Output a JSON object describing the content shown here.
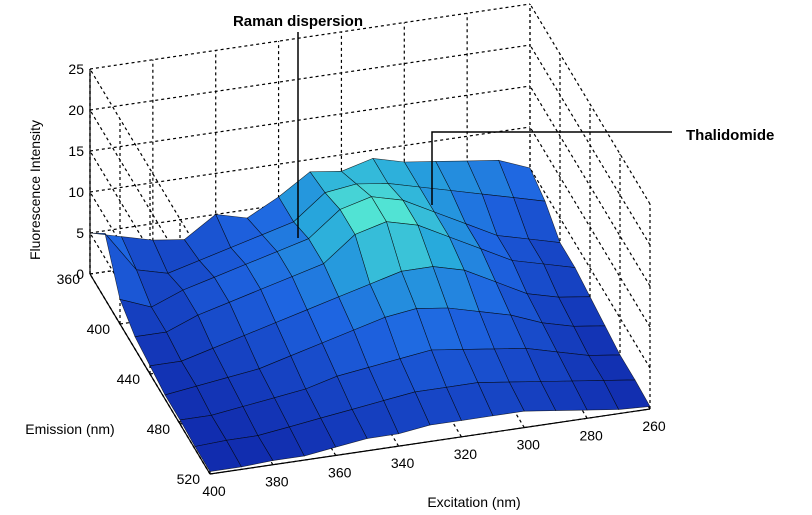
{
  "chart_data": {
    "type": "surface",
    "zlabel": "Fluorescence Intensity",
    "ylabel": "Emission (nm)",
    "xlabel": "Excitation (nm)",
    "z_ticks": [
      "0",
      "5",
      "10",
      "15",
      "20",
      "25"
    ],
    "y_ticks": [
      "360",
      "400",
      "440",
      "480",
      "520"
    ],
    "x_ticks": [
      "400",
      "380",
      "360",
      "340",
      "320",
      "300",
      "280",
      "260"
    ],
    "zlim": [
      0,
      25
    ],
    "ylim": [
      360,
      520
    ],
    "xlim": [
      260,
      400
    ],
    "grid": true,
    "annotations": [
      {
        "text": "Raman dispersion"
      },
      {
        "text": "Thalidomide"
      }
    ],
    "excitation": [
      400,
      390,
      380,
      370,
      360,
      350,
      340,
      330,
      320,
      310,
      300,
      290,
      280,
      270,
      260
    ],
    "emission": [
      360,
      380,
      400,
      420,
      440,
      460,
      480,
      500,
      520
    ],
    "intensity": [
      [
        5,
        4,
        3,
        2.5,
        5,
        4,
        6,
        8.5,
        8,
        9,
        8,
        7.5,
        7,
        6.5,
        5
      ],
      [
        8,
        3,
        2,
        3,
        4,
        5,
        6,
        9,
        9.5,
        9,
        8,
        7,
        6,
        5,
        4
      ],
      [
        3,
        1.5,
        3,
        4,
        5,
        6,
        7,
        10,
        11,
        10,
        8,
        6,
        4,
        3,
        2
      ],
      [
        1.5,
        1.5,
        3,
        4,
        5,
        6,
        7,
        10,
        11,
        10,
        8,
        6,
        4,
        3,
        2
      ],
      [
        1,
        1,
        2,
        3,
        4,
        5,
        6,
        7,
        8,
        8,
        7,
        5,
        3,
        2,
        1.5
      ],
      [
        0.5,
        1,
        1.5,
        2,
        3,
        4,
        5,
        6,
        6.5,
        6,
        5,
        4,
        2.5,
        1.5,
        1
      ],
      [
        0.5,
        0.5,
        1,
        1.5,
        2,
        3,
        3.5,
        4,
        4.5,
        4,
        3.5,
        3,
        2,
        1,
        0.5
      ],
      [
        0.3,
        0.5,
        0.5,
        1,
        1.5,
        2,
        2.5,
        3,
        3,
        3,
        2.5,
        2,
        1.5,
        1,
        0.5
      ],
      [
        0.3,
        0.3,
        0.5,
        0.5,
        1,
        1.5,
        1.5,
        2,
        2,
        2,
        2,
        1.5,
        1,
        0.5,
        0.3
      ]
    ]
  }
}
